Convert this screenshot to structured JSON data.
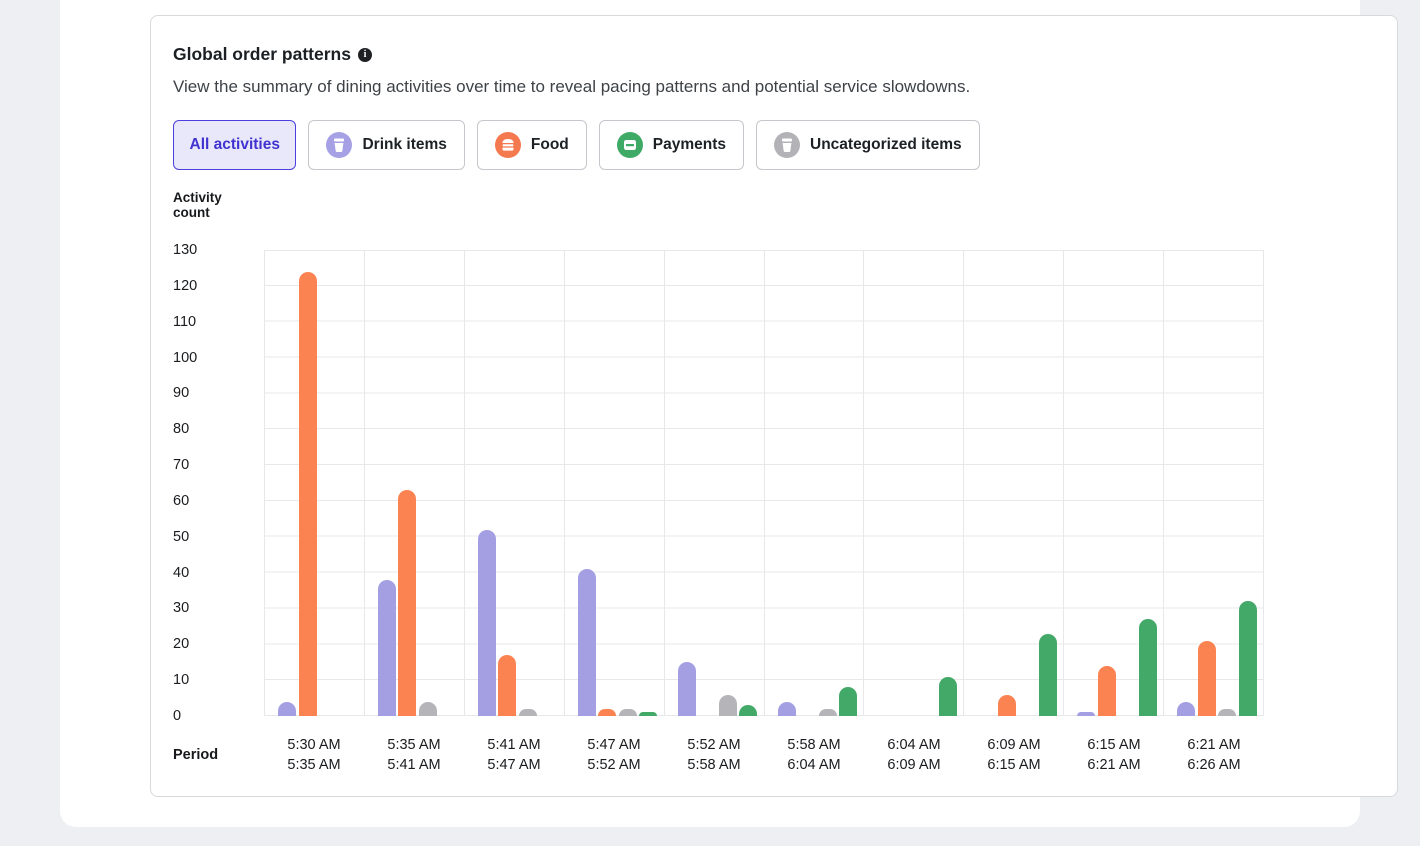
{
  "header": {
    "title": "Global order patterns",
    "info_icon": "i",
    "subtitle": "View the summary of dining activities over time to reveal pacing patterns and potential service slowdowns."
  },
  "filters": [
    {
      "label": "All activities",
      "selected": true,
      "icon": null,
      "icon_color": null
    },
    {
      "label": "Drink items",
      "selected": false,
      "icon": "drink-icon",
      "icon_color": "#a6a1e4"
    },
    {
      "label": "Food",
      "selected": false,
      "icon": "food-icon",
      "icon_color": "#f5794e"
    },
    {
      "label": "Payments",
      "selected": false,
      "icon": "payments-icon",
      "icon_color": "#3fa966"
    },
    {
      "label": "Uncategorized items",
      "selected": false,
      "icon": "uncategorized-icon",
      "icon_color": "#b3b3b7"
    }
  ],
  "chart_data": {
    "type": "bar",
    "title": "Global order patterns",
    "ylabel": "Activity count",
    "xlabel": "Period",
    "ylim": [
      0,
      130
    ],
    "ytick_step": 10,
    "yticks": [
      "130",
      "120",
      "110",
      "100",
      "90",
      "80",
      "70",
      "60",
      "50",
      "40",
      "30",
      "20",
      "10",
      "0"
    ],
    "grid": true,
    "legend_position": "none",
    "categories": [
      [
        "5:30 AM",
        "5:35 AM"
      ],
      [
        "5:35 AM",
        "5:41 AM"
      ],
      [
        "5:41 AM",
        "5:47 AM"
      ],
      [
        "5:47 AM",
        "5:52 AM"
      ],
      [
        "5:52 AM",
        "5:58 AM"
      ],
      [
        "5:58 AM",
        "6:04 AM"
      ],
      [
        "6:04 AM",
        "6:09 AM"
      ],
      [
        "6:09 AM",
        "6:15 AM"
      ],
      [
        "6:15 AM",
        "6:21 AM"
      ],
      [
        "6:21 AM",
        "6:26 AM"
      ]
    ],
    "series": [
      {
        "name": "Drink items",
        "color": "#a49fe3",
        "values": [
          4,
          38,
          52,
          41,
          15,
          4,
          0,
          0,
          1,
          4
        ]
      },
      {
        "name": "Food",
        "color": "#fb8351",
        "values": [
          124,
          63,
          17,
          2,
          0,
          0,
          0,
          6,
          14,
          21
        ]
      },
      {
        "name": "Uncategorized items",
        "color": "#b5b4b8",
        "values": [
          0,
          4,
          2,
          2,
          6,
          2,
          0,
          0,
          0,
          2
        ]
      },
      {
        "name": "Payments",
        "color": "#43a968",
        "values": [
          0,
          0,
          0,
          1,
          3,
          8,
          11,
          23,
          27,
          32
        ]
      }
    ]
  }
}
